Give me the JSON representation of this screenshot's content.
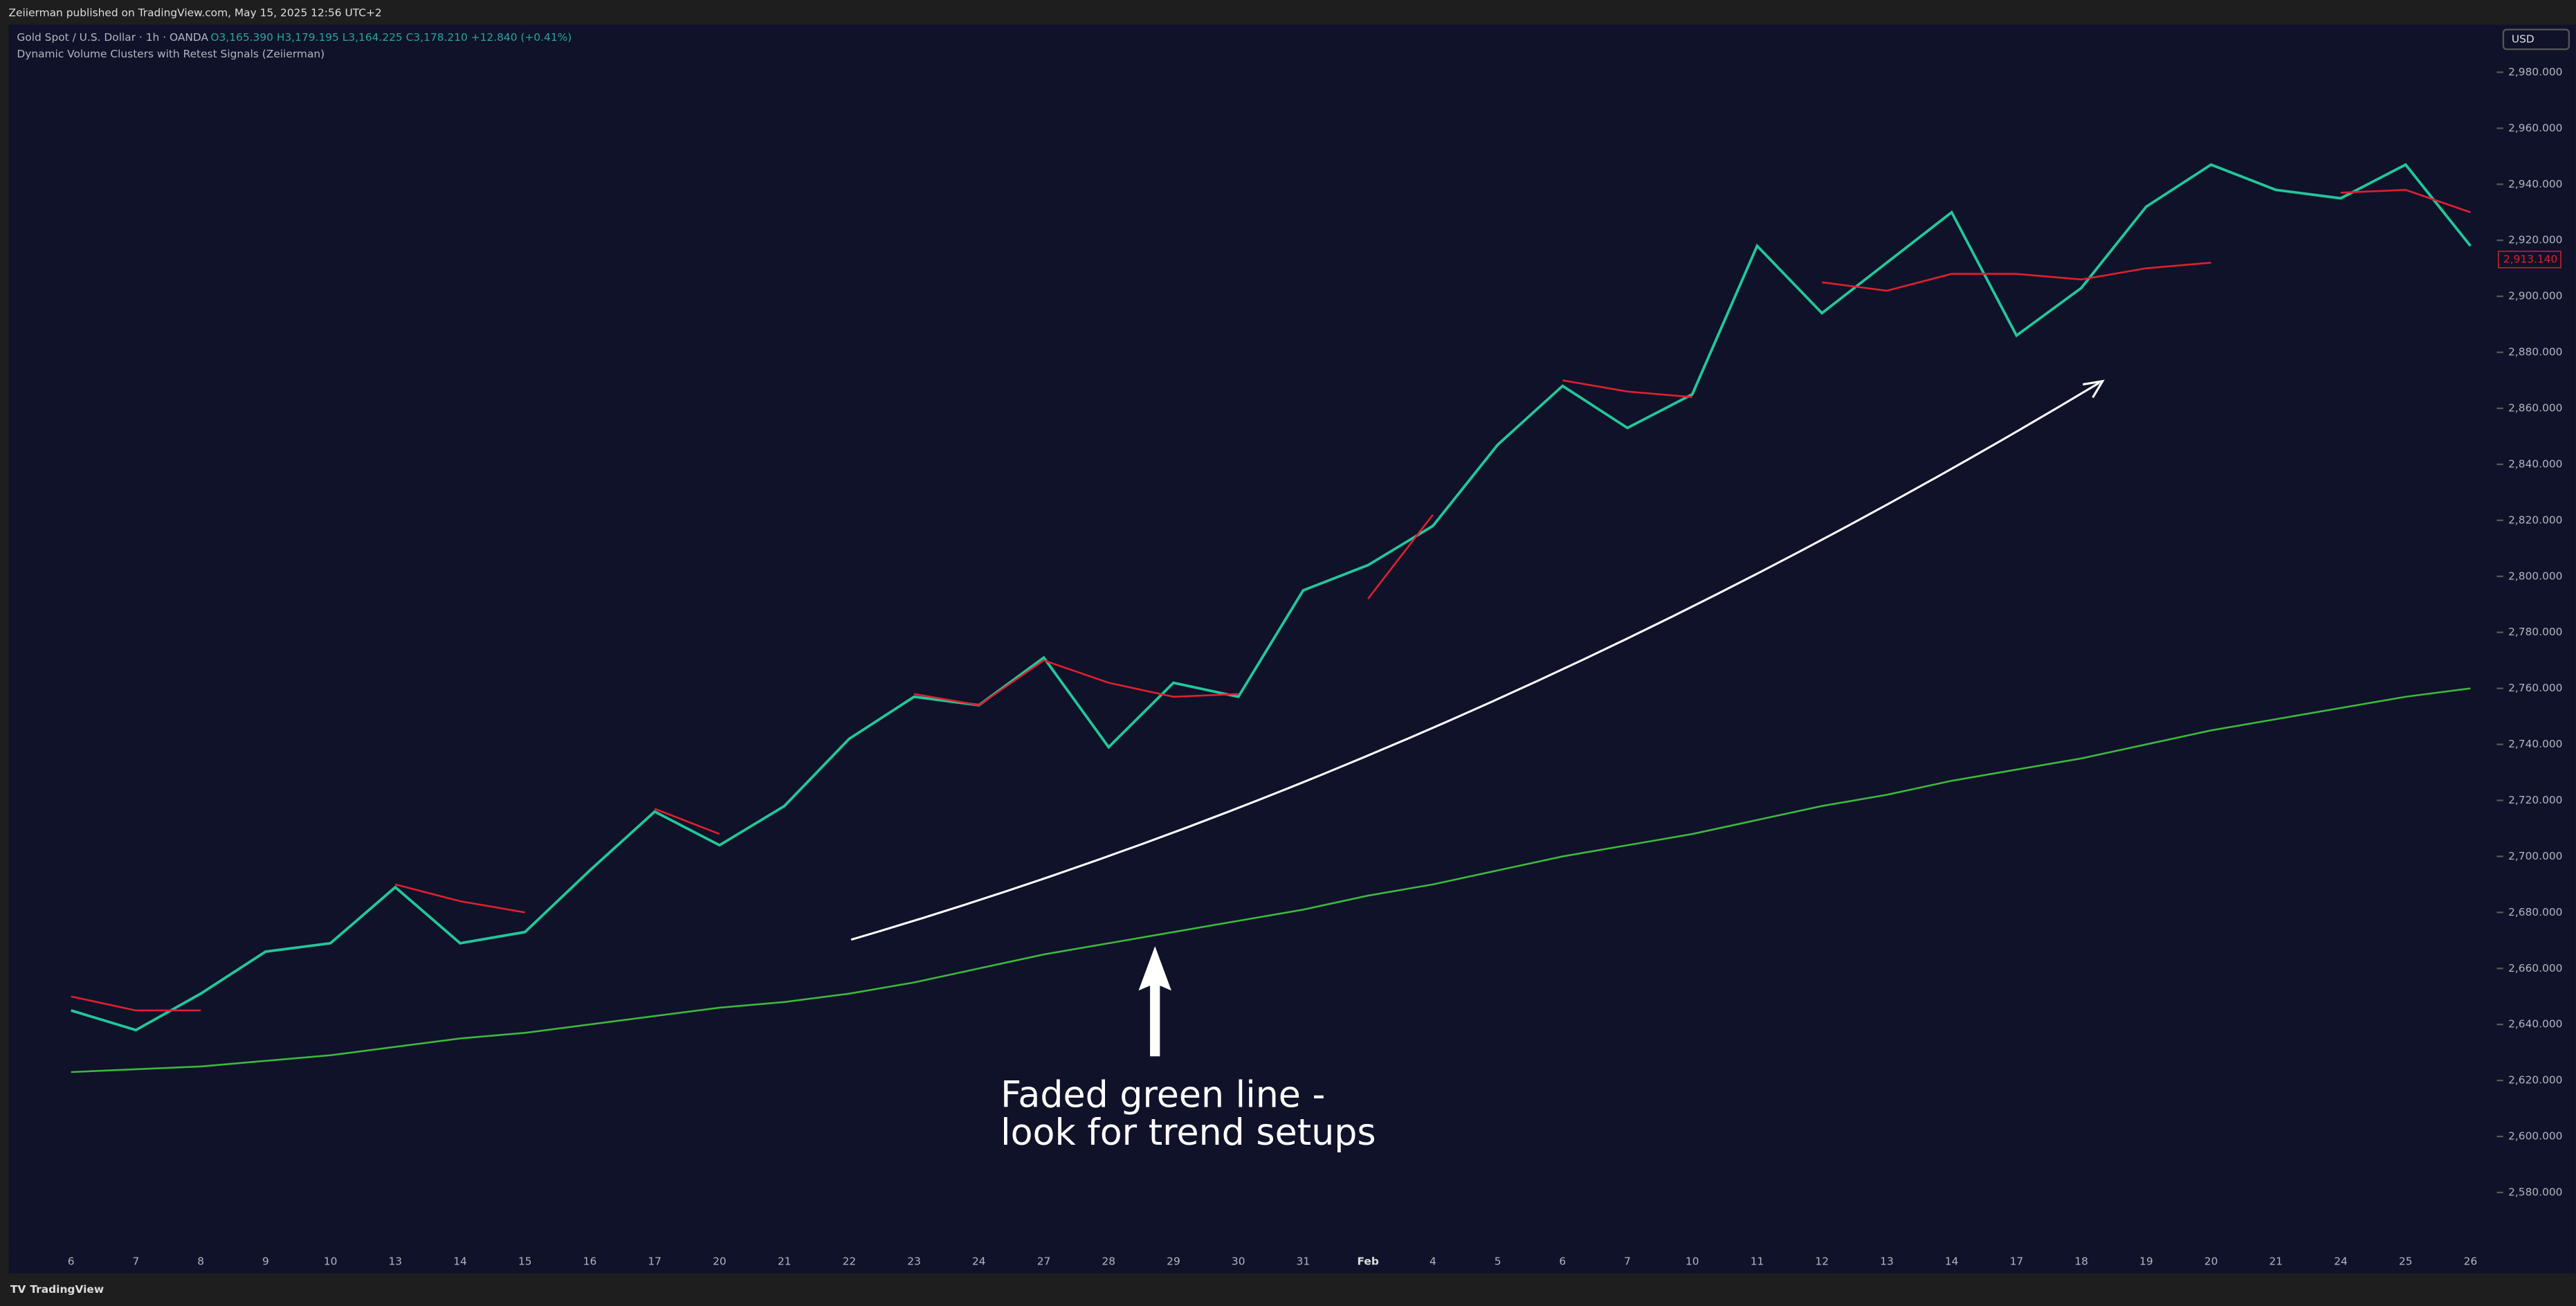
{
  "header": {
    "publisher": "Zeiierman published on TradingView.com, May 15, 2025 12:56 UTC+2",
    "symbol": "Gold Spot / U.S. Dollar · 1h · OANDA",
    "ohlc": "O3,165.390 H3,179.195 L3,164.225 C3,178.210 +12.840 (+0.41%)",
    "indicator": "Dynamic Volume Clusters with Retest Signals (Zeiierman)",
    "currency": "USD"
  },
  "footer": {
    "brand": "TradingView"
  },
  "chart_data": {
    "type": "line",
    "categories": [
      "6",
      "7",
      "8",
      "9",
      "10",
      "13",
      "14",
      "15",
      "16",
      "17",
      "20",
      "21",
      "22",
      "23",
      "24",
      "27",
      "28",
      "29",
      "30",
      "31",
      "Feb",
      "4",
      "5",
      "6",
      "7",
      "10",
      "11",
      "12",
      "13",
      "14",
      "17",
      "18",
      "19",
      "20",
      "21",
      "24",
      "25",
      "26"
    ],
    "series": [
      {
        "color": "#22c79a",
        "values": [
          2645,
          2638,
          2651,
          2666,
          2669,
          2689,
          2669,
          2673,
          2695,
          2716,
          2704,
          2718,
          2742,
          2757,
          2754,
          2771,
          2739,
          2762,
          2757,
          2795,
          2804,
          2818,
          2847,
          2868,
          2853,
          2865,
          2918,
          2894,
          2912,
          2930,
          2886,
          2903,
          2932,
          2947,
          2938,
          2935,
          2947,
          2918
        ]
      },
      {
        "color": "#3db83d",
        "values": [
          2623,
          2624,
          2625,
          2627,
          2629,
          2632,
          2635,
          2637,
          2640,
          2643,
          2646,
          2648,
          2651,
          2655,
          2660,
          2665,
          2669,
          2673,
          2677,
          2681,
          2686,
          2690,
          2695,
          2700,
          2704,
          2708,
          2713,
          2718,
          2722,
          2727,
          2731,
          2735,
          2740,
          2745,
          2749,
          2753,
          2757,
          2760
        ]
      },
      {
        "color": "#e0202e",
        "values": [
          2650,
          2645,
          2645,
          null,
          null,
          2690,
          2684,
          2680,
          null,
          2717,
          2708,
          null,
          null,
          2758,
          2754,
          2770,
          2762,
          2757,
          2758,
          null,
          2792,
          2822,
          null,
          2870,
          2866,
          2864,
          null,
          2905,
          2902,
          2908,
          2908,
          2906,
          2910,
          2912,
          null,
          2937,
          2938,
          2930
        ]
      }
    ],
    "last_price": {
      "value": 2913.14,
      "label": "2,913.140"
    },
    "ylim": [
      2560,
      2997
    ],
    "yticks": [
      {
        "value": 2580,
        "label": "2,580.000"
      },
      {
        "value": 2600,
        "label": "2,600.000"
      },
      {
        "value": 2620,
        "label": "2,620.000"
      },
      {
        "value": 2640,
        "label": "2,640.000"
      },
      {
        "value": 2660,
        "label": "2,660.000"
      },
      {
        "value": 2680,
        "label": "2,680.000"
      },
      {
        "value": 2700,
        "label": "2,700.000"
      },
      {
        "value": 2720,
        "label": "2,720.000"
      },
      {
        "value": 2740,
        "label": "2,740.000"
      },
      {
        "value": 2760,
        "label": "2,760.000"
      },
      {
        "value": 2780,
        "label": "2,780.000"
      },
      {
        "value": 2800,
        "label": "2,800.000"
      },
      {
        "value": 2820,
        "label": "2,820.000"
      },
      {
        "value": 2840,
        "label": "2,840.000"
      },
      {
        "value": 2860,
        "label": "2,860.000"
      },
      {
        "value": 2880,
        "label": "2,880.000"
      },
      {
        "value": 2900,
        "label": "2,900.000"
      },
      {
        "value": 2920,
        "label": "2,920.000"
      },
      {
        "value": 2940,
        "label": "2,940.000"
      },
      {
        "value": 2960,
        "label": "2,960.000"
      },
      {
        "value": 2980,
        "label": "2,980.000"
      }
    ],
    "annotation": [
      "Faded green line -",
      "look for trend setups"
    ]
  }
}
